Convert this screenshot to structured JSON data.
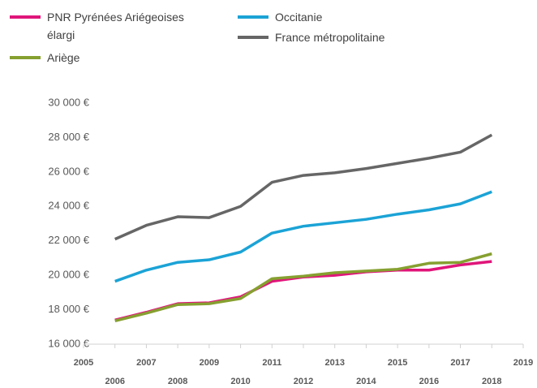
{
  "chart_data": {
    "type": "line",
    "x": [
      2006,
      2007,
      2008,
      2009,
      2010,
      2011,
      2012,
      2013,
      2014,
      2015,
      2016,
      2017,
      2018
    ],
    "series": [
      {
        "name": "PNR Pyrénées Ariégeoises élargi",
        "color": "#e0157a",
        "values": [
          17400,
          17850,
          18350,
          18400,
          18750,
          19650,
          19900,
          20000,
          20200,
          20300,
          20300,
          20600,
          20800
        ]
      },
      {
        "name": "Ariège",
        "color": "#86a030",
        "values": [
          17350,
          17800,
          18300,
          18350,
          18650,
          19800,
          19950,
          20150,
          20250,
          20350,
          20700,
          20750,
          21250
        ]
      },
      {
        "name": "Occitanie",
        "color": "#1ba3d6",
        "values": [
          19650,
          20300,
          20750,
          20900,
          21350,
          22450,
          22850,
          23050,
          23250,
          23550,
          23800,
          24150,
          24850
        ]
      },
      {
        "name": "France métropolitaine",
        "color": "#666666",
        "values": [
          22100,
          22900,
          23400,
          23350,
          24000,
          25400,
          25800,
          25950,
          26200,
          26500,
          26800,
          27150,
          28150
        ]
      }
    ],
    "xlim": [
      2005,
      2019
    ],
    "xticks": [
      2005,
      2006,
      2007,
      2008,
      2009,
      2010,
      2011,
      2012,
      2013,
      2014,
      2015,
      2016,
      2017,
      2018,
      2019
    ],
    "ylim": [
      16000,
      30000
    ],
    "yticks": [
      {
        "value": 16000,
        "label": "16 000 €"
      },
      {
        "value": 18000,
        "label": "18 000 €"
      },
      {
        "value": 20000,
        "label": "20 000 €"
      },
      {
        "value": 22000,
        "label": "22 000 €"
      },
      {
        "value": 24000,
        "label": "24 000 €"
      },
      {
        "value": 26000,
        "label": "26 000 €"
      },
      {
        "value": 28000,
        "label": "28 000 €"
      },
      {
        "value": 30000,
        "label": "30 000 €"
      }
    ],
    "grid": false
  }
}
